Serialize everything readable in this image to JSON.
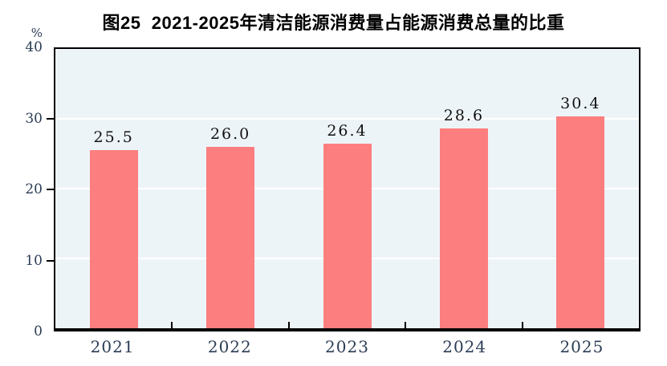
{
  "title": "图25  2021-2025年清洁能源消费量占能源消费总量的比重",
  "colors": {
    "bar": "#FC7E7E",
    "plot_background": "#EDF4F8",
    "gridline": "#FFFFFF",
    "axis_border": "#000000",
    "axis_text": "#2B3D55",
    "data_label_text": "#111111",
    "title_text": "#000000",
    "page_background": "#FFFFFF"
  },
  "chart_data": {
    "type": "bar",
    "title": "图25  2021-2025年清洁能源消费量占能源消费总量的比重",
    "categories": [
      "2021",
      "2022",
      "2023",
      "2024",
      "2025"
    ],
    "values": [
      25.5,
      26.0,
      26.4,
      28.6,
      30.4
    ],
    "data_labels": [
      "25.5",
      "26.0",
      "26.4",
      "28.6",
      "30.4"
    ],
    "xlabel": "",
    "ylabel": "%",
    "ylim": [
      0,
      40
    ],
    "yticks": [
      0,
      10,
      20,
      30,
      40
    ],
    "grid": true,
    "legend_position": "none"
  }
}
